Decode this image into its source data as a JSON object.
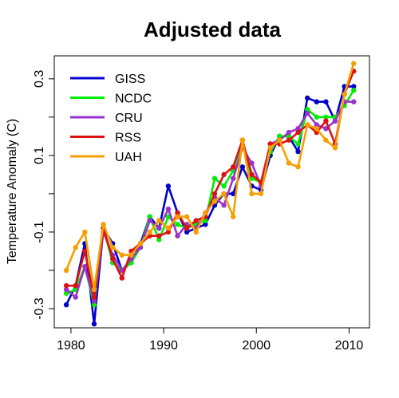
{
  "chart_data": {
    "type": "line",
    "title": "Adjusted data",
    "xlabel": "",
    "ylabel": "Temperature Anomaly (C)",
    "xlim": [
      1978.2,
      2012.2
    ],
    "ylim": [
      -0.35,
      0.36
    ],
    "xticks": [
      1980,
      1990,
      2000,
      2010
    ],
    "yticks": [
      -0.3,
      -0.2,
      -0.1,
      0.0,
      0.1,
      0.2,
      0.3
    ],
    "ytick_labels": [
      "-0.3",
      "",
      "-0.1",
      "",
      "0.1",
      "",
      "0.3"
    ],
    "grid": false,
    "legend_position": "top-left",
    "series": [
      {
        "name": "GISS",
        "color": "#0000cc",
        "x": [
          1979.5,
          1980.5,
          1981.5,
          1982.5,
          1983.5,
          1984.5,
          1985.5,
          1986.5,
          1987.5,
          1988.5,
          1989.5,
          1990.5,
          1991.5,
          1992.5,
          1993.5,
          1994.5,
          1995.5,
          1996.5,
          1997.5,
          1998.5,
          1999.5,
          2000.5,
          2001.5,
          2002.5,
          2003.5,
          2004.5,
          2005.5,
          2006.5,
          2007.5,
          2008.5,
          2009.5,
          2010.5
        ],
        "y": [
          -0.29,
          -0.24,
          -0.13,
          -0.34,
          -0.09,
          -0.13,
          -0.2,
          -0.18,
          -0.13,
          -0.06,
          -0.09,
          0.02,
          -0.05,
          -0.1,
          -0.09,
          -0.08,
          -0.03,
          0.0,
          0.0,
          0.07,
          0.02,
          0.01,
          0.1,
          0.15,
          0.15,
          0.11,
          0.25,
          0.24,
          0.24,
          0.19,
          0.28,
          0.28
        ]
      },
      {
        "name": "NCDC",
        "color": "#00ee00",
        "x": [
          1979.5,
          1980.5,
          1981.5,
          1982.5,
          1983.5,
          1984.5,
          1985.5,
          1986.5,
          1987.5,
          1988.5,
          1989.5,
          1990.5,
          1991.5,
          1992.5,
          1993.5,
          1994.5,
          1995.5,
          1996.5,
          1997.5,
          1998.5,
          1999.5,
          2000.5,
          2001.5,
          2002.5,
          2003.5,
          2004.5,
          2005.5,
          2006.5,
          2007.5,
          2008.5,
          2009.5,
          2010.5
        ],
        "y": [
          -0.26,
          -0.25,
          -0.19,
          -0.29,
          -0.09,
          -0.18,
          -0.2,
          -0.18,
          -0.14,
          -0.06,
          -0.12,
          -0.06,
          -0.08,
          -0.09,
          -0.08,
          -0.07,
          0.04,
          0.02,
          0.06,
          0.14,
          0.04,
          0.03,
          0.11,
          0.15,
          0.15,
          0.13,
          0.22,
          0.2,
          0.2,
          0.2,
          0.23,
          0.27
        ]
      },
      {
        "name": "CRU",
        "color": "#9933cc",
        "x": [
          1979.5,
          1980.5,
          1981.5,
          1982.5,
          1983.5,
          1984.5,
          1985.5,
          1986.5,
          1987.5,
          1988.5,
          1989.5,
          1990.5,
          1991.5,
          1992.5,
          1993.5,
          1994.5,
          1995.5,
          1996.5,
          1997.5,
          1998.5,
          1999.5,
          2000.5,
          2001.5,
          2002.5,
          2003.5,
          2004.5,
          2005.5,
          2006.5,
          2007.5,
          2008.5,
          2009.5,
          2010.5
        ],
        "y": [
          -0.25,
          -0.27,
          -0.19,
          -0.28,
          -0.1,
          -0.16,
          -0.2,
          -0.17,
          -0.14,
          -0.07,
          -0.09,
          -0.04,
          -0.11,
          -0.08,
          -0.09,
          -0.05,
          -0.01,
          -0.03,
          0.04,
          0.12,
          0.08,
          0.02,
          0.13,
          0.14,
          0.16,
          0.17,
          0.21,
          0.18,
          0.17,
          0.19,
          0.24,
          0.24
        ]
      },
      {
        "name": "RSS",
        "color": "#dd1111",
        "x": [
          1979.5,
          1980.5,
          1981.5,
          1982.5,
          1983.5,
          1984.5,
          1985.5,
          1986.5,
          1987.5,
          1988.5,
          1989.5,
          1990.5,
          1991.5,
          1992.5,
          1993.5,
          1994.5,
          1995.5,
          1996.5,
          1997.5,
          1998.5,
          1999.5,
          2000.5,
          2001.5,
          2002.5,
          2003.5,
          2004.5,
          2005.5,
          2006.5,
          2007.5,
          2008.5,
          2009.5,
          2010.5
        ],
        "y": [
          -0.24,
          -0.24,
          -0.15,
          -0.27,
          -0.09,
          -0.17,
          -0.22,
          -0.15,
          -0.13,
          -0.11,
          -0.11,
          -0.1,
          -0.05,
          -0.09,
          -0.07,
          -0.06,
          0.0,
          0.05,
          0.07,
          0.14,
          0.05,
          0.03,
          0.13,
          0.13,
          0.14,
          0.16,
          0.18,
          0.16,
          0.19,
          0.13,
          0.26,
          0.32
        ]
      },
      {
        "name": "UAH",
        "color": "#f5a000",
        "x": [
          1979.5,
          1980.5,
          1981.5,
          1982.5,
          1983.5,
          1984.5,
          1985.5,
          1986.5,
          1987.5,
          1988.5,
          1989.5,
          1990.5,
          1991.5,
          1992.5,
          1993.5,
          1994.5,
          1995.5,
          1996.5,
          1997.5,
          1998.5,
          1999.5,
          2000.5,
          2001.5,
          2002.5,
          2003.5,
          2004.5,
          2005.5,
          2006.5,
          2007.5,
          2008.5,
          2009.5,
          2010.5
        ],
        "y": [
          -0.2,
          -0.14,
          -0.1,
          -0.25,
          -0.08,
          -0.14,
          -0.16,
          -0.16,
          -0.13,
          -0.1,
          -0.07,
          -0.09,
          -0.06,
          -0.06,
          -0.1,
          -0.05,
          -0.02,
          0.0,
          -0.06,
          0.14,
          0.0,
          0.0,
          0.12,
          0.14,
          0.08,
          0.07,
          0.18,
          0.17,
          0.14,
          0.12,
          0.26,
          0.34
        ]
      }
    ]
  }
}
